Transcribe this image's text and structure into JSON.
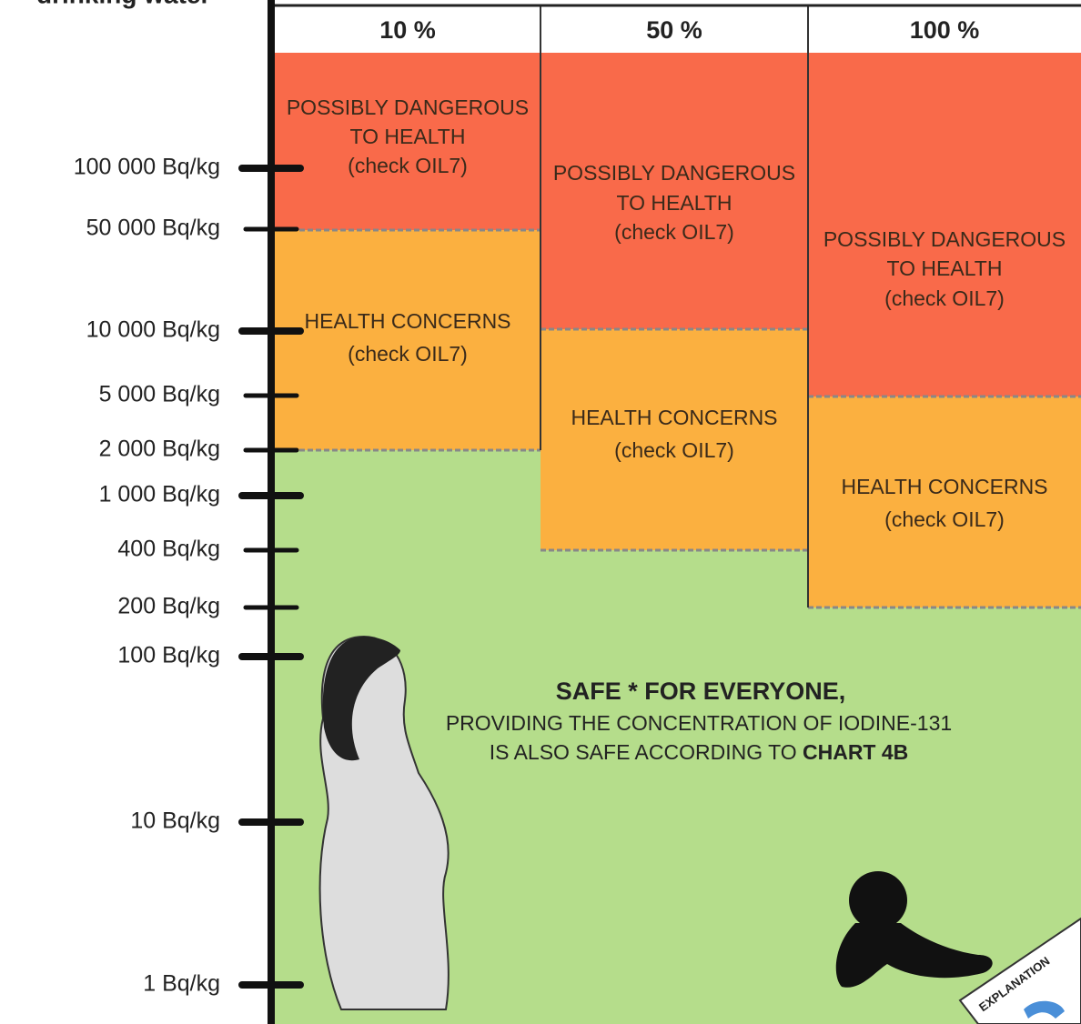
{
  "header": {
    "title": "drinking water"
  },
  "axis": {
    "ticks": [
      "100 000 Bq/kg",
      "50 000 Bq/kg",
      "10 000 Bq/kg",
      "5 000 Bq/kg",
      "2 000 Bq/kg",
      "1 000 Bq/kg",
      "400 Bq/kg",
      "200 Bq/kg",
      "100 Bq/kg",
      "10 Bq/kg",
      "1 Bq/kg"
    ]
  },
  "columns": [
    {
      "header": "10 %",
      "danger": [
        "POSSIBLY DANGEROUS",
        "TO HEALTH",
        "(check OIL7)"
      ],
      "concern": [
        "HEALTH CONCERNS",
        "(check OIL7)"
      ]
    },
    {
      "header": "50 %",
      "danger": [
        "POSSIBLY DANGEROUS",
        "TO HEALTH",
        "(check OIL7)"
      ],
      "concern": [
        "HEALTH CONCERNS",
        "(check OIL7)"
      ]
    },
    {
      "header": "100 %",
      "danger": [
        "POSSIBLY DANGEROUS",
        "TO HEALTH",
        "(check OIL7)"
      ],
      "concern": [
        "HEALTH CONCERNS",
        "(check OIL7)"
      ]
    }
  ],
  "safe": {
    "title": "SAFE * FOR EVERYONE,",
    "line1": "PROVIDING THE CONCENTRATION OF IODINE-131",
    "line2": "IS ALSO SAFE ACCORDING TO",
    "line2_bold": "CHART 4B"
  },
  "explanation": "EXPLANATION"
}
